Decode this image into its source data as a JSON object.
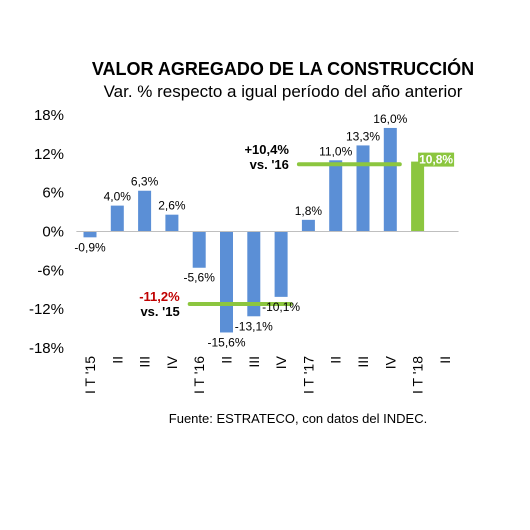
{
  "chart_data": {
    "type": "bar",
    "title": "VALOR AGREGADO DE LA CONSTRUCCIÓN",
    "subtitle": "Var. % respecto a igual período del año anterior",
    "source": "Fuente: ESTRATECO, con datos del INDEC.",
    "categories": [
      "I T '15",
      "II",
      "III",
      "IV",
      "I T '16",
      "II",
      "III",
      "IV",
      "I T '17",
      "II",
      "III",
      "IV",
      "I T '18",
      "II"
    ],
    "values": [
      -0.9,
      4.0,
      6.3,
      2.6,
      -5.6,
      -15.6,
      -13.1,
      -10.1,
      1.8,
      11.0,
      13.3,
      16.0,
      10.8,
      null
    ],
    "value_labels": [
      "-0,9%",
      "4,0%",
      "6,3%",
      "2,6%",
      "-5,6%",
      "-15,6%",
      "-13,1%",
      "-10,1%",
      "1,8%",
      "11,0%",
      "13,3%",
      "16,0%",
      "10,8%",
      ""
    ],
    "highlight_index": 12,
    "ylim": [
      -18,
      18
    ],
    "yticks": [
      18,
      12,
      6,
      0,
      -6,
      -12,
      -18
    ],
    "ytick_labels": [
      "18%",
      "12%",
      "6%",
      "0%",
      "-6%",
      "-12%",
      "-18%"
    ],
    "colors": {
      "bar": "#5b8fd6",
      "highlight": "#8cc63f",
      "average_line": "#8cc63f",
      "negative_text": "#c00000"
    },
    "annotations": [
      {
        "value": -11.2,
        "from_index": 4,
        "to_index": 7,
        "label": "-11,2%",
        "sublabel": "vs. '15",
        "label_color": "#c00000"
      },
      {
        "value": 10.4,
        "from_index": 8,
        "to_index": 11,
        "label": "+10,4%",
        "sublabel": "vs. '16",
        "label_color": "#000000"
      }
    ]
  }
}
